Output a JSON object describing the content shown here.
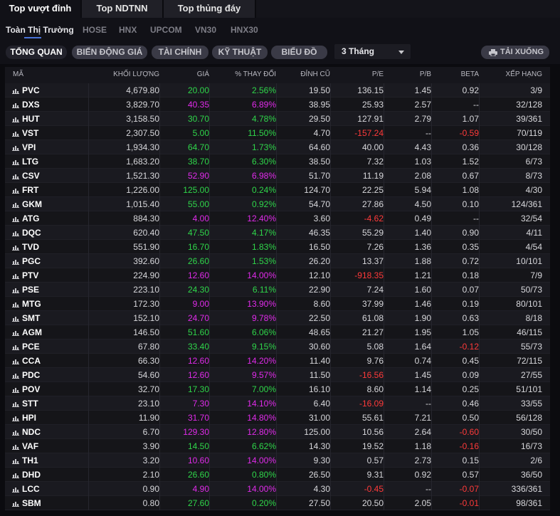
{
  "top_tabs": [
    "Top vượt đỉnh",
    "Top NDTNN",
    "Top thủng đáy"
  ],
  "exchanges": [
    "Toàn Thị Trường",
    "HOSE",
    "HNX",
    "UPCOM",
    "VN30",
    "HNX30"
  ],
  "toolbar": {
    "views": [
      "TỔNG QUAN",
      "BIẾN ĐỘNG GIÁ",
      "TÀI CHÍNH",
      "KỸ THUẬT",
      "BIỂU ĐỒ"
    ],
    "period": "3 Tháng",
    "download_label": "TẢI XUỐNG"
  },
  "columns": [
    "MÃ",
    "KHỐI LƯỢNG",
    "GIÁ",
    "% THAY ĐỔI",
    "ĐỈNH CŨ",
    "P/E",
    "P/B",
    "BETA",
    "XẾP HẠNG"
  ],
  "colors": {
    "up": "#2fd64a",
    "ceiling": "#e02bea",
    "down": "#ff3a3a",
    "neutral": "#d8d8dc"
  },
  "rows": [
    {
      "symbol": "PVC",
      "volume": "4,679.80",
      "price": "20.00",
      "change": "2.56%",
      "color": "green",
      "peak": "19.50",
      "pe": "136.15",
      "pb": "1.45",
      "beta": "0.92",
      "rank": "3/9"
    },
    {
      "symbol": "DXS",
      "volume": "3,829.70",
      "price": "40.35",
      "change": "6.89%",
      "color": "magenta",
      "peak": "38.95",
      "pe": "25.93",
      "pb": "2.57",
      "beta": "--",
      "rank": "32/128"
    },
    {
      "symbol": "HUT",
      "volume": "3,158.50",
      "price": "30.70",
      "change": "4.78%",
      "color": "green",
      "peak": "29.50",
      "pe": "127.91",
      "pb": "2.79",
      "beta": "1.07",
      "rank": "39/361"
    },
    {
      "symbol": "VST",
      "volume": "2,307.50",
      "price": "5.00",
      "change": "11.50%",
      "color": "green",
      "peak": "4.70",
      "pe": "-157.24",
      "pb": "--",
      "beta": "-0.59",
      "rank": "70/119"
    },
    {
      "symbol": "VPI",
      "volume": "1,934.30",
      "price": "64.70",
      "change": "1.73%",
      "color": "green",
      "peak": "64.60",
      "pe": "40.00",
      "pb": "4.43",
      "beta": "0.36",
      "rank": "30/128"
    },
    {
      "symbol": "LTG",
      "volume": "1,683.20",
      "price": "38.70",
      "change": "6.30%",
      "color": "green",
      "peak": "38.50",
      "pe": "7.32",
      "pb": "1.03",
      "beta": "1.52",
      "rank": "6/73"
    },
    {
      "symbol": "CSV",
      "volume": "1,521.30",
      "price": "52.90",
      "change": "6.98%",
      "color": "magenta",
      "peak": "51.70",
      "pe": "11.19",
      "pb": "2.08",
      "beta": "0.67",
      "rank": "8/73"
    },
    {
      "symbol": "FRT",
      "volume": "1,226.00",
      "price": "125.00",
      "change": "0.24%",
      "color": "green",
      "peak": "124.70",
      "pe": "22.25",
      "pb": "5.94",
      "beta": "1.08",
      "rank": "4/30"
    },
    {
      "symbol": "GKM",
      "volume": "1,015.40",
      "price": "55.00",
      "change": "0.92%",
      "color": "green",
      "peak": "54.70",
      "pe": "27.86",
      "pb": "4.50",
      "beta": "0.10",
      "rank": "124/361"
    },
    {
      "symbol": "ATG",
      "volume": "884.30",
      "price": "4.00",
      "change": "12.40%",
      "color": "magenta",
      "peak": "3.60",
      "pe": "-4.62",
      "pb": "0.49",
      "beta": "--",
      "rank": "32/54"
    },
    {
      "symbol": "DQC",
      "volume": "620.40",
      "price": "47.50",
      "change": "4.17%",
      "color": "green",
      "peak": "46.35",
      "pe": "55.29",
      "pb": "1.40",
      "beta": "0.90",
      "rank": "4/11"
    },
    {
      "symbol": "TVD",
      "volume": "551.90",
      "price": "16.70",
      "change": "1.83%",
      "color": "green",
      "peak": "16.50",
      "pe": "7.26",
      "pb": "1.36",
      "beta": "0.35",
      "rank": "4/54"
    },
    {
      "symbol": "PGC",
      "volume": "392.60",
      "price": "26.60",
      "change": "1.53%",
      "color": "green",
      "peak": "26.20",
      "pe": "13.37",
      "pb": "1.88",
      "beta": "0.72",
      "rank": "10/101"
    },
    {
      "symbol": "PTV",
      "volume": "224.90",
      "price": "12.60",
      "change": "14.00%",
      "color": "magenta",
      "peak": "12.10",
      "pe": "-918.35",
      "pb": "1.21",
      "beta": "0.18",
      "rank": "7/9"
    },
    {
      "symbol": "PSE",
      "volume": "223.10",
      "price": "24.30",
      "change": "6.11%",
      "color": "green",
      "peak": "22.90",
      "pe": "7.24",
      "pb": "1.60",
      "beta": "0.07",
      "rank": "50/73"
    },
    {
      "symbol": "MTG",
      "volume": "172.30",
      "price": "9.00",
      "change": "13.90%",
      "color": "magenta",
      "peak": "8.60",
      "pe": "37.99",
      "pb": "1.46",
      "beta": "0.19",
      "rank": "80/101"
    },
    {
      "symbol": "SMT",
      "volume": "152.10",
      "price": "24.70",
      "change": "9.78%",
      "color": "magenta",
      "peak": "22.50",
      "pe": "61.08",
      "pb": "1.90",
      "beta": "0.63",
      "rank": "8/18"
    },
    {
      "symbol": "AGM",
      "volume": "146.50",
      "price": "51.60",
      "change": "6.06%",
      "color": "green",
      "peak": "48.65",
      "pe": "21.27",
      "pb": "1.95",
      "beta": "1.05",
      "rank": "46/115"
    },
    {
      "symbol": "PCE",
      "volume": "67.80",
      "price": "33.40",
      "change": "9.15%",
      "color": "green",
      "peak": "30.60",
      "pe": "5.08",
      "pb": "1.64",
      "beta": "-0.12",
      "rank": "55/73"
    },
    {
      "symbol": "CCA",
      "volume": "66.30",
      "price": "12.60",
      "change": "14.20%",
      "color": "magenta",
      "peak": "11.40",
      "pe": "9.76",
      "pb": "0.74",
      "beta": "0.45",
      "rank": "72/115"
    },
    {
      "symbol": "PDC",
      "volume": "54.60",
      "price": "12.60",
      "change": "9.57%",
      "color": "magenta",
      "peak": "11.50",
      "pe": "-16.56",
      "pb": "1.45",
      "beta": "0.09",
      "rank": "27/55"
    },
    {
      "symbol": "POV",
      "volume": "32.70",
      "price": "17.30",
      "change": "7.00%",
      "color": "green",
      "peak": "16.10",
      "pe": "8.60",
      "pb": "1.14",
      "beta": "0.25",
      "rank": "51/101"
    },
    {
      "symbol": "STT",
      "volume": "23.10",
      "price": "7.30",
      "change": "14.10%",
      "color": "magenta",
      "peak": "6.40",
      "pe": "-16.09",
      "pb": "--",
      "beta": "0.46",
      "rank": "33/55"
    },
    {
      "symbol": "HPI",
      "volume": "11.90",
      "price": "31.70",
      "change": "14.80%",
      "color": "magenta",
      "peak": "31.00",
      "pe": "55.61",
      "pb": "7.21",
      "beta": "0.50",
      "rank": "56/128"
    },
    {
      "symbol": "NDC",
      "volume": "6.70",
      "price": "129.30",
      "change": "12.80%",
      "color": "magenta",
      "peak": "125.00",
      "pe": "10.56",
      "pb": "2.64",
      "beta": "-0.60",
      "rank": "30/50"
    },
    {
      "symbol": "VAF",
      "volume": "3.90",
      "price": "14.50",
      "change": "6.62%",
      "color": "green",
      "peak": "14.30",
      "pe": "19.52",
      "pb": "1.18",
      "beta": "-0.16",
      "rank": "16/73"
    },
    {
      "symbol": "TH1",
      "volume": "3.20",
      "price": "10.60",
      "change": "14.00%",
      "color": "magenta",
      "peak": "9.30",
      "pe": "0.57",
      "pb": "2.73",
      "beta": "0.15",
      "rank": "2/6"
    },
    {
      "symbol": "DHD",
      "volume": "2.10",
      "price": "26.60",
      "change": "0.80%",
      "color": "green",
      "peak": "26.50",
      "pe": "9.31",
      "pb": "0.92",
      "beta": "0.57",
      "rank": "36/50"
    },
    {
      "symbol": "LCC",
      "volume": "0.90",
      "price": "4.90",
      "change": "14.00%",
      "color": "magenta",
      "peak": "4.30",
      "pe": "-0.45",
      "pb": "--",
      "beta": "-0.07",
      "rank": "336/361"
    },
    {
      "symbol": "SBM",
      "volume": "0.80",
      "price": "27.60",
      "change": "0.20%",
      "color": "green",
      "peak": "27.50",
      "pe": "20.50",
      "pb": "2.05",
      "beta": "-0.01",
      "rank": "98/361"
    }
  ]
}
